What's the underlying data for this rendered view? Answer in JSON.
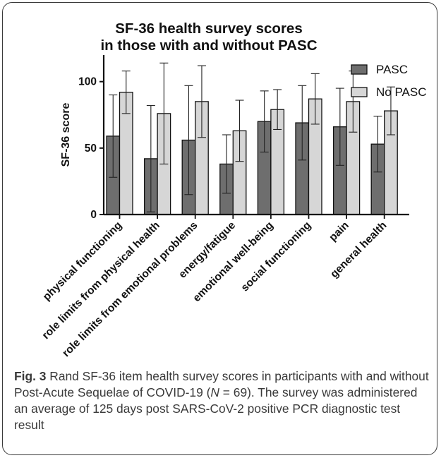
{
  "chart_data": {
    "type": "bar",
    "title": [
      "SF-36 health survey scores",
      "in those with and without PASC"
    ],
    "ylabel": "SF-36 score",
    "ylim": [
      0,
      120
    ],
    "yticks": [
      0,
      50,
      100
    ],
    "categories": [
      "physical functioning",
      "role limits from physical health",
      "role limits from emotional problems",
      "energy/fatigue",
      "emotional well-being",
      "social functioning",
      "pain",
      "general health"
    ],
    "series": [
      {
        "name": "PASC",
        "color": "#6e6e6e",
        "values": [
          59,
          42,
          56,
          38,
          70,
          69,
          66,
          53
        ],
        "sd": [
          31,
          40,
          41,
          22,
          23,
          28,
          29,
          21
        ]
      },
      {
        "name": "No PASC",
        "color": "#d6d6d6",
        "values": [
          92,
          76,
          85,
          63,
          79,
          87,
          85,
          78
        ],
        "sd": [
          16,
          38,
          27,
          23,
          15,
          19,
          23,
          18
        ]
      }
    ],
    "legend_position": "top-right"
  },
  "caption": {
    "fig_label": "Fig. 3",
    "text_1": " Rand SF-36 item health survey scores in participants with and without Post-Acute Sequelae of COVID-19 (",
    "n_symbol": "N",
    "text_2": " = 69). The survey was administered an average of 125 days post SARS-CoV-2 positive PCR diagnostic test result"
  }
}
